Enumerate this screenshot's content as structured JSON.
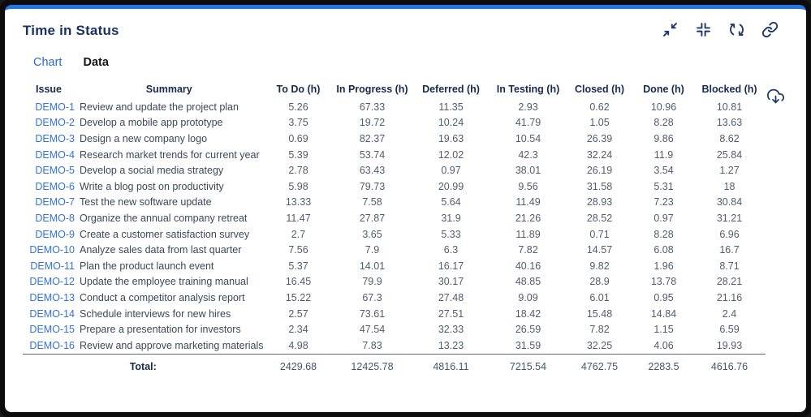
{
  "card": {
    "title": "Time in Status",
    "toolbar": {
      "minimize_icon": "collapse-arrows-icon",
      "collapse_icon": "collapse-corners-icon",
      "refresh_icon": "refresh-icon",
      "link_icon": "link-icon"
    },
    "tabs": [
      {
        "label": "Chart",
        "active": false
      },
      {
        "label": "Data",
        "active": true
      }
    ],
    "export_icon": "cloud-download-icon"
  },
  "colors": {
    "accent_blue": "#2274E8",
    "navy_text": "#172B4D",
    "link_blue": "#3372D8",
    "tab_blue": "#2A6BD6"
  },
  "table": {
    "columns": [
      "Issue",
      "Summary",
      "To Do (h)",
      "In Progress (h)",
      "Deferred (h)",
      "In Testing (h)",
      "Closed (h)",
      "Done (h)",
      "Blocked (h)"
    ],
    "rows": [
      {
        "issue": "DEMO-1",
        "summary": "Review and update the project plan",
        "values": [
          "5.26",
          "67.33",
          "11.35",
          "2.93",
          "0.62",
          "10.96",
          "10.81"
        ]
      },
      {
        "issue": "DEMO-2",
        "summary": "Develop a mobile app prototype",
        "values": [
          "3.75",
          "19.72",
          "10.24",
          "41.79",
          "1.05",
          "8.28",
          "13.63"
        ]
      },
      {
        "issue": "DEMO-3",
        "summary": "Design a new company logo",
        "values": [
          "0.69",
          "82.37",
          "19.63",
          "10.54",
          "26.39",
          "9.86",
          "8.62"
        ]
      },
      {
        "issue": "DEMO-4",
        "summary": "Research market trends for current year",
        "values": [
          "5.39",
          "53.74",
          "12.02",
          "42.3",
          "32.24",
          "11.9",
          "25.84"
        ]
      },
      {
        "issue": "DEMO-5",
        "summary": "Develop a social media strategy",
        "values": [
          "2.78",
          "63.43",
          "0.97",
          "38.01",
          "26.19",
          "3.54",
          "1.27"
        ]
      },
      {
        "issue": "DEMO-6",
        "summary": "Write a blog post on productivity",
        "values": [
          "5.98",
          "79.73",
          "20.99",
          "9.56",
          "31.58",
          "5.31",
          "18"
        ]
      },
      {
        "issue": "DEMO-7",
        "summary": "Test the new software update",
        "values": [
          "13.33",
          "7.58",
          "5.64",
          "11.49",
          "28.93",
          "7.23",
          "30.84"
        ]
      },
      {
        "issue": "DEMO-8",
        "summary": "Organize the annual company retreat",
        "values": [
          "11.47",
          "27.87",
          "31.9",
          "21.26",
          "28.52",
          "0.97",
          "31.21"
        ]
      },
      {
        "issue": "DEMO-9",
        "summary": "Create a customer satisfaction survey",
        "values": [
          "2.7",
          "3.65",
          "5.33",
          "11.89",
          "0.71",
          "8.28",
          "6.96"
        ]
      },
      {
        "issue": "DEMO-10",
        "summary": "Analyze sales data from last quarter",
        "values": [
          "7.56",
          "7.9",
          "6.3",
          "7.82",
          "14.57",
          "6.08",
          "16.7"
        ]
      },
      {
        "issue": "DEMO-11",
        "summary": "Plan the product launch event",
        "values": [
          "5.37",
          "14.01",
          "16.17",
          "40.16",
          "9.82",
          "1.96",
          "8.71"
        ]
      },
      {
        "issue": "DEMO-12",
        "summary": "Update the employee training manual",
        "values": [
          "16.45",
          "79.9",
          "30.17",
          "48.85",
          "28.9",
          "13.78",
          "28.21"
        ]
      },
      {
        "issue": "DEMO-13",
        "summary": "Conduct a competitor analysis report",
        "values": [
          "15.22",
          "67.3",
          "27.48",
          "9.09",
          "6.01",
          "0.95",
          "21.16"
        ]
      },
      {
        "issue": "DEMO-14",
        "summary": "Schedule interviews for new hires",
        "values": [
          "2.57",
          "73.61",
          "27.51",
          "18.42",
          "15.48",
          "14.84",
          "2.4"
        ]
      },
      {
        "issue": "DEMO-15",
        "summary": "Prepare a presentation for investors",
        "values": [
          "2.34",
          "47.54",
          "32.33",
          "26.59",
          "7.82",
          "1.15",
          "6.59"
        ]
      },
      {
        "issue": "DEMO-16",
        "summary": "Review and approve marketing materials",
        "values": [
          "4.98",
          "7.83",
          "13.23",
          "31.59",
          "32.25",
          "4.06",
          "19.93"
        ]
      }
    ],
    "total_label": "Total:",
    "totals": [
      "2429.68",
      "12425.78",
      "4816.11",
      "7215.54",
      "4762.75",
      "2283.5",
      "4616.76"
    ]
  }
}
